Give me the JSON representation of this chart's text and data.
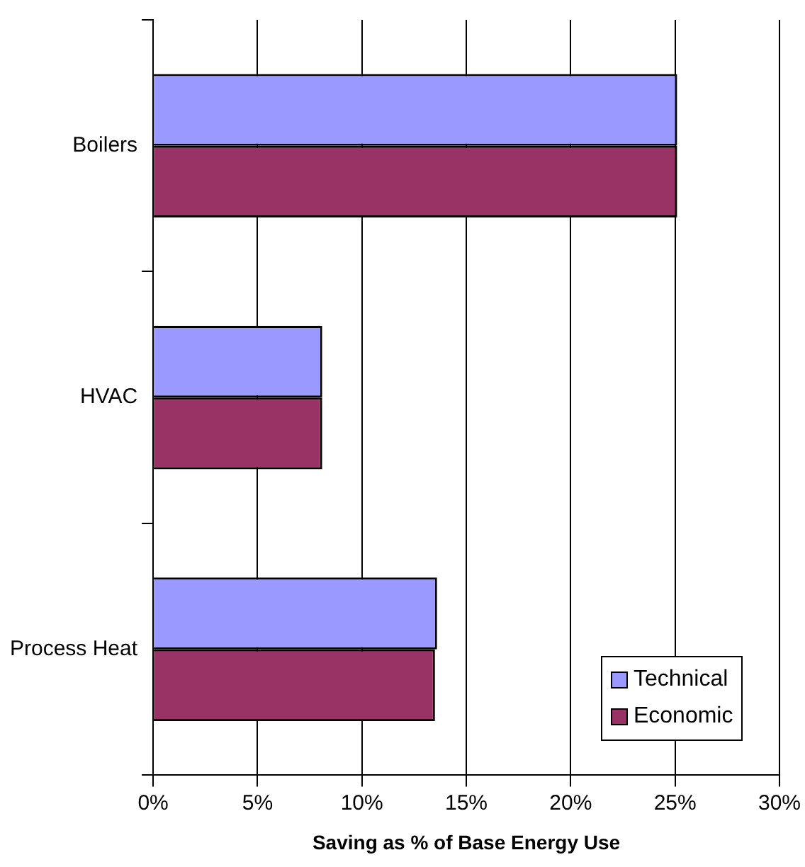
{
  "chart_data": {
    "type": "bar",
    "orientation": "horizontal",
    "xlabel": "Saving as % of Base Energy Use",
    "categories": [
      "Boilers",
      "HVAC",
      "Process Heat"
    ],
    "series": [
      {
        "name": "Technical",
        "color": "#9999ff",
        "values": [
          25.1,
          8.1,
          13.6
        ]
      },
      {
        "name": "Economic",
        "color": "#993366",
        "values": [
          25.1,
          8.1,
          13.5
        ]
      }
    ],
    "xlim": [
      0,
      30
    ],
    "xticks": [
      {
        "value": 0,
        "label": "0%"
      },
      {
        "value": 5,
        "label": "5%"
      },
      {
        "value": 10,
        "label": "10%"
      },
      {
        "value": 15,
        "label": "15%"
      },
      {
        "value": 20,
        "label": "20%"
      },
      {
        "value": 25,
        "label": "25%"
      },
      {
        "value": 30,
        "label": "30%"
      }
    ],
    "grid": "x",
    "legend": "bottom right"
  }
}
